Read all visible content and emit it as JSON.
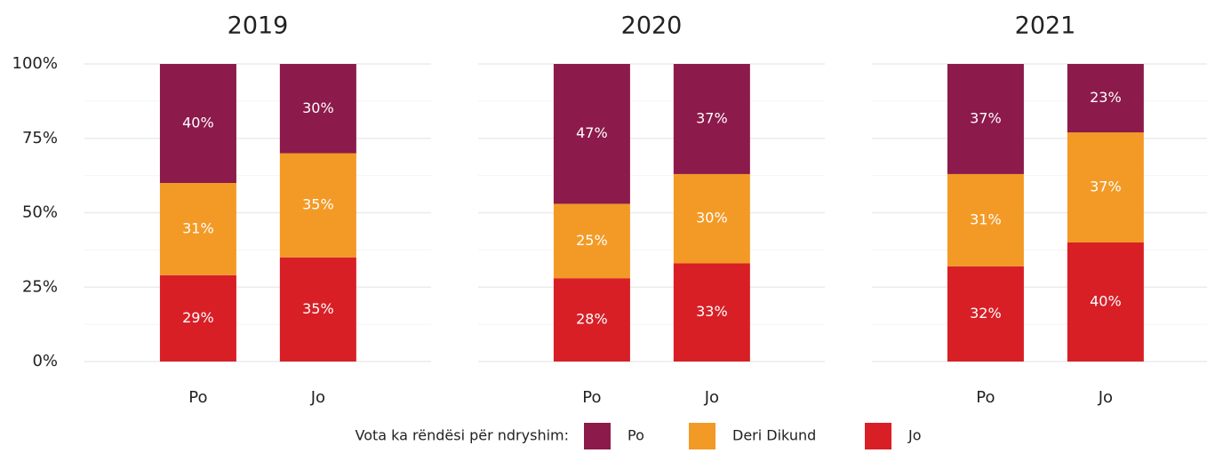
{
  "legend": {
    "title": "Vota ka rëndësi për ndryshim:"
  },
  "chart_data": [
    {
      "type": "stacked_bar",
      "title": "2019",
      "categories": [
        "Po",
        "Jo"
      ],
      "series": [
        {
          "name": "Po",
          "color": "#8c1a4b",
          "values": [
            40,
            30
          ],
          "value_labels": [
            "40%",
            "30%"
          ]
        },
        {
          "name": "Deri Dikund",
          "color": "#f39a26",
          "values": [
            31,
            35
          ],
          "value_labels": [
            "31%",
            "35%"
          ]
        },
        {
          "name": "Jo",
          "color": "#d81f26",
          "values": [
            29,
            35
          ],
          "value_labels": [
            "29%",
            "35%"
          ]
        }
      ],
      "ylim": [
        0,
        100
      ],
      "yticks": [
        {
          "value": 0,
          "label": "0%"
        },
        {
          "value": 25,
          "label": "25%"
        },
        {
          "value": 50,
          "label": "50%"
        },
        {
          "value": 75,
          "label": "75%"
        },
        {
          "value": 100,
          "label": "100%"
        }
      ]
    },
    {
      "type": "stacked_bar",
      "title": "2020",
      "categories": [
        "Po",
        "Jo"
      ],
      "series": [
        {
          "name": "Po",
          "color": "#8c1a4b",
          "values": [
            47,
            37
          ],
          "value_labels": [
            "47%",
            "37%"
          ]
        },
        {
          "name": "Deri Dikund",
          "color": "#f39a26",
          "values": [
            25,
            30
          ],
          "value_labels": [
            "25%",
            "30%"
          ]
        },
        {
          "name": "Jo",
          "color": "#d81f26",
          "values": [
            28,
            33
          ],
          "value_labels": [
            "28%",
            "33%"
          ]
        }
      ],
      "ylim": [
        0,
        100
      ],
      "yticks": [
        0,
        25,
        50,
        75,
        100
      ]
    },
    {
      "type": "stacked_bar",
      "title": "2021",
      "categories": [
        "Po",
        "Jo"
      ],
      "series": [
        {
          "name": "Po",
          "color": "#8c1a4b",
          "values": [
            37,
            23
          ],
          "value_labels": [
            "37%",
            "23%"
          ]
        },
        {
          "name": "Deri Dikund",
          "color": "#f39a26",
          "values": [
            31,
            37
          ],
          "value_labels": [
            "31%",
            "37%"
          ]
        },
        {
          "name": "Jo",
          "color": "#d81f26",
          "values": [
            32,
            40
          ],
          "value_labels": [
            "32%",
            "40%"
          ]
        }
      ],
      "ylim": [
        0,
        100
      ],
      "yticks": [
        0,
        25,
        50,
        75,
        100
      ]
    }
  ]
}
